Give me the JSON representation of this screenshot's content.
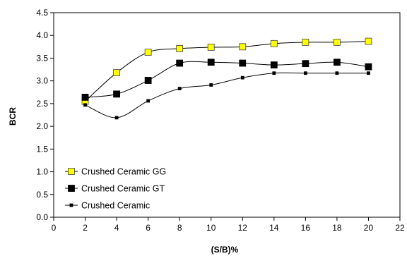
{
  "chart_data": {
    "type": "line",
    "title": "",
    "xlabel": "(S/B)%",
    "ylabel": "BCR",
    "xlim": [
      0,
      22
    ],
    "ylim": [
      0.0,
      4.5
    ],
    "xticks": [
      "0",
      "2",
      "4",
      "6",
      "8",
      "10",
      "12",
      "14",
      "16",
      "18",
      "20",
      "22"
    ],
    "yticks": [
      "0.0",
      "0.5",
      "1.0",
      "1.5",
      "2.0",
      "2.5",
      "3.0",
      "3.5",
      "4.0",
      "4.5"
    ],
    "grid": false,
    "legend_position": "bottom-left",
    "x": [
      2,
      4,
      6,
      8,
      10,
      12,
      14,
      16,
      18,
      20
    ],
    "series": [
      {
        "name": "Crushed Ceramic GG",
        "values": [
          2.55,
          3.18,
          3.63,
          3.71,
          3.74,
          3.75,
          3.82,
          3.85,
          3.85,
          3.87
        ],
        "marker": "square",
        "fill": "#ffff00",
        "stroke": "#444444"
      },
      {
        "name": "Crushed Ceramic GT",
        "values": [
          2.64,
          2.71,
          3.01,
          3.39,
          3.41,
          3.39,
          3.35,
          3.38,
          3.41,
          3.31
        ],
        "marker": "square",
        "fill": "#000000",
        "stroke": "#000000"
      },
      {
        "name": "Crushed Ceramic",
        "values": [
          2.47,
          2.19,
          2.56,
          2.83,
          2.91,
          3.07,
          3.17,
          3.17,
          3.17,
          3.17
        ],
        "marker": "small-square",
        "fill": "#000000",
        "stroke": "#000000"
      }
    ]
  }
}
